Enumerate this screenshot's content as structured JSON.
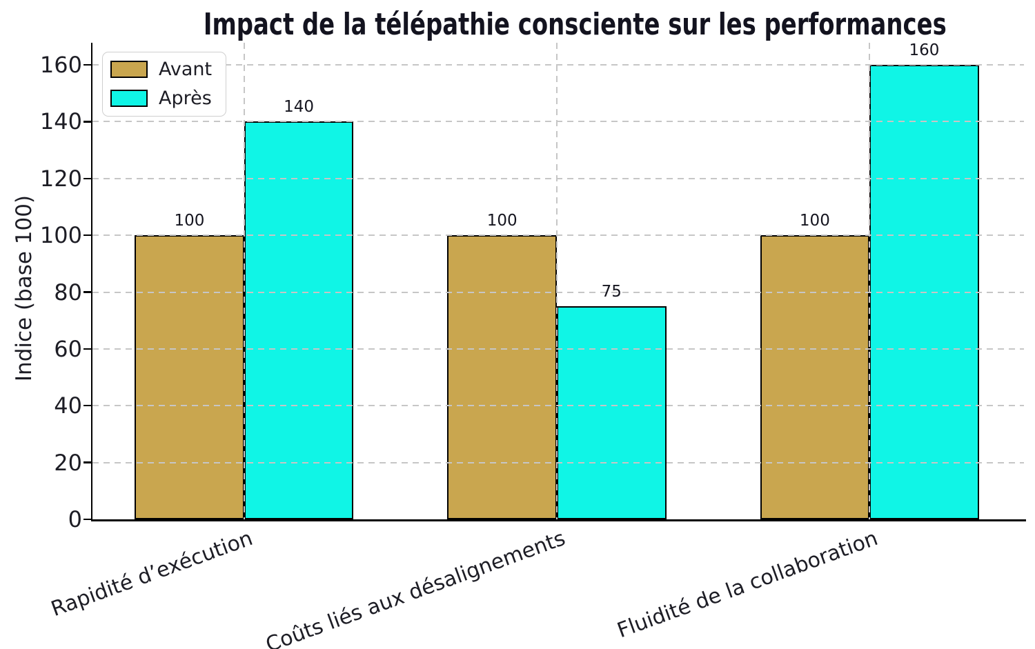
{
  "chart_data": {
    "type": "bar",
    "title": "Impact de la télépathie consciente sur les performances",
    "ylabel": "Indice (base 100)",
    "xlabel": "",
    "categories": [
      "Rapidité d’exécution",
      "Coûts liés aux désalignements",
      "Fluidité de la collaboration"
    ],
    "series": [
      {
        "name": "Avant",
        "color": "#C9A64F",
        "values": [
          100,
          100,
          100
        ]
      },
      {
        "name": "Après",
        "color": "#10F5E6",
        "values": [
          140,
          75,
          160
        ]
      }
    ],
    "bar_value_labels": [
      [
        100,
        100,
        100
      ],
      [
        140,
        75,
        160
      ]
    ],
    "yticks": [
      0,
      20,
      40,
      60,
      80,
      100,
      120,
      140,
      160
    ],
    "ylim": [
      0,
      168
    ],
    "bar_width_fraction": 0.35,
    "grid": "dashed",
    "grid_axes": "both",
    "grid_above_bars": true,
    "legend_position": "upper left",
    "colors": {
      "bar_edge": "#000000",
      "grid": "#c6c6c6",
      "text": "#1d1d25",
      "title": "#13131f",
      "background": "#ffffff"
    }
  }
}
